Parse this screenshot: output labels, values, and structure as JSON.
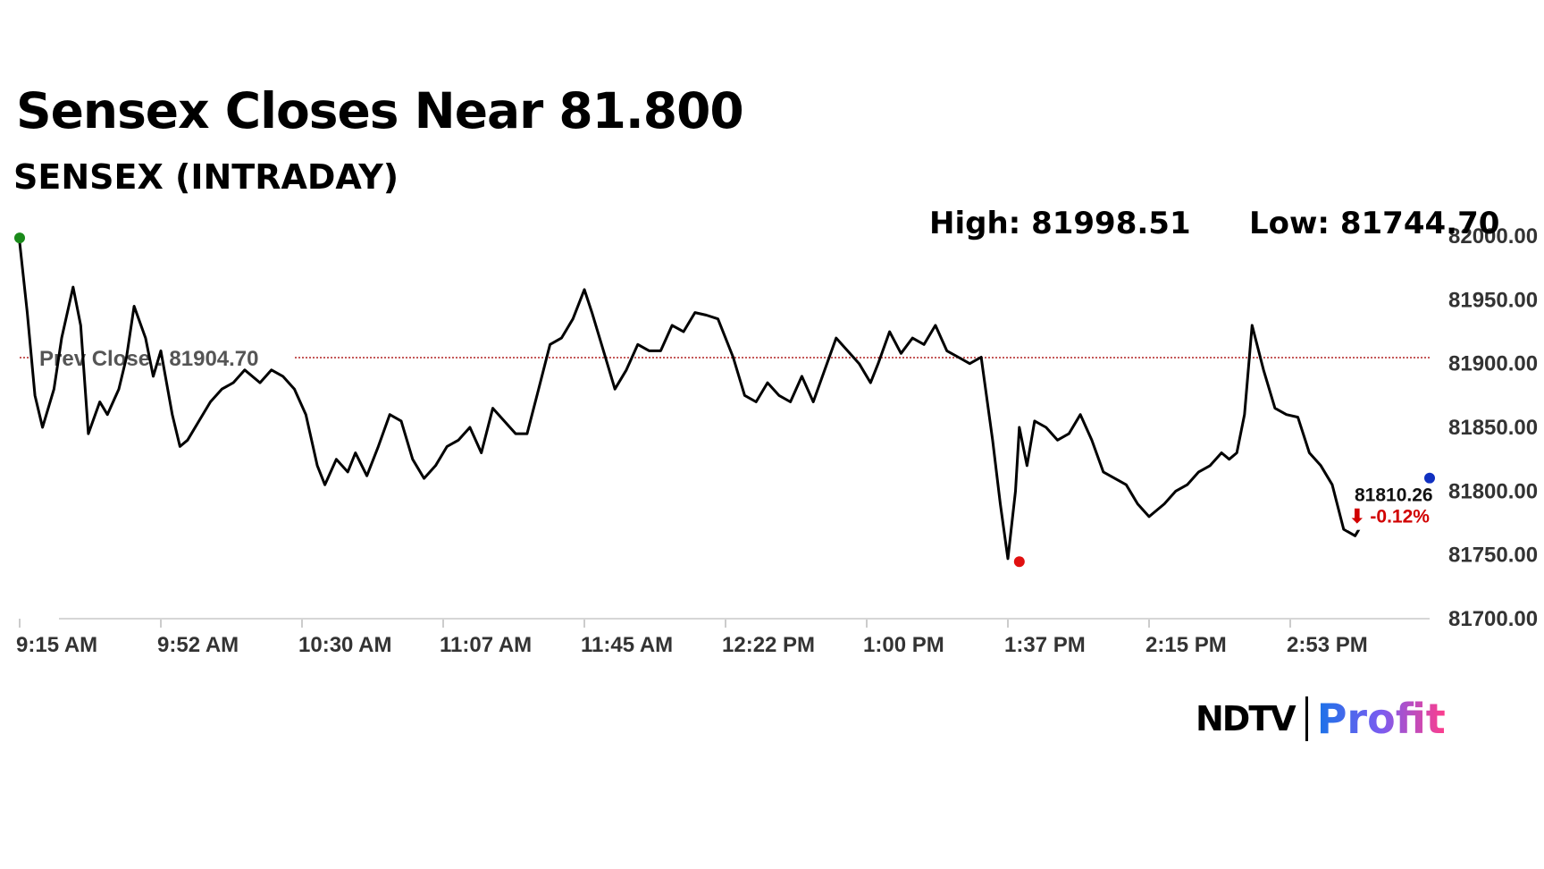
{
  "headline": "Sensex Closes Near 81.800",
  "subtitle": "SENSEX (INTRADAY)",
  "stats": {
    "high": "High: 81998.51",
    "low": "Low: 81744.70"
  },
  "logo": {
    "ndtv": "NDTV",
    "profit": "Profit"
  },
  "chart_data": {
    "type": "line",
    "title": "",
    "xlabel": "",
    "ylabel": "",
    "ylim": [
      81700,
      82000
    ],
    "yticks": [
      "82000.00",
      "81950.00",
      "81900.00",
      "81850.00",
      "81800.00",
      "81750.00",
      "81700.00"
    ],
    "xticks": [
      "9:15 AM",
      "9:52 AM",
      "10:30 AM",
      "11:07 AM",
      "11:45 AM",
      "12:22 PM",
      "1:00 PM",
      "1:37 PM",
      "2:15 PM",
      "2:53 PM"
    ],
    "prev_close": {
      "label": "Prev Close : 81904.70",
      "value": 81904.7
    },
    "last": {
      "value_label": "81810.26",
      "change_label": "⬇ -0.12%",
      "value": 81810.26
    },
    "high_point": {
      "time": "9:15 AM",
      "value": 81998.51
    },
    "low_point": {
      "time": "1:37 PM",
      "value": 81744.7
    },
    "colors": {
      "line": "#000000",
      "prev_close": "#b22222",
      "high_marker": "#1a8a1a",
      "low_marker": "#e01010",
      "last_marker": "#1030c0",
      "change": "#d10000"
    },
    "series": [
      {
        "x": [
          "9:15 AM",
          "9:17 AM",
          "9:19 AM",
          "9:21 AM",
          "9:24 AM",
          "9:26 AM",
          "9:29 AM",
          "9:31 AM",
          "9:33 AM",
          "9:36 AM",
          "9:38 AM",
          "9:41 AM",
          "9:43 AM",
          "9:45 AM",
          "9:48 AM",
          "9:50 AM",
          "9:52 AM",
          "9:55 AM",
          "9:57 AM",
          "9:59 AM",
          "10:02 AM",
          "10:05 AM",
          "10:08 AM",
          "10:11 AM",
          "10:14 AM",
          "10:18 AM",
          "10:21 AM",
          "10:24 AM",
          "10:27 AM",
          "10:30 AM",
          "10:33 AM",
          "10:35 AM",
          "10:38 AM",
          "10:41 AM",
          "10:43 AM",
          "10:46 AM",
          "10:49 AM",
          "10:52 AM",
          "10:55 AM",
          "10:58 AM",
          "11:01 AM",
          "11:04 AM",
          "11:07 AM",
          "11:10 AM",
          "11:13 AM",
          "11:16 AM",
          "11:19 AM",
          "11:22 AM",
          "11:25 AM",
          "11:28 AM",
          "11:31 AM",
          "11:34 AM",
          "11:37 AM",
          "11:40 AM",
          "11:43 AM",
          "11:45 AM",
          "11:48 AM",
          "11:51 AM",
          "11:54 AM",
          "11:57 AM",
          "12:00 PM",
          "12:03 PM",
          "12:06 PM",
          "12:09 PM",
          "12:12 PM",
          "12:15 PM",
          "12:18 PM",
          "12:22 PM",
          "12:25 PM",
          "12:28 PM",
          "12:31 PM",
          "12:34 PM",
          "12:37 PM",
          "12:40 PM",
          "12:43 PM",
          "12:46 PM",
          "12:49 PM",
          "12:52 PM",
          "12:55 PM",
          "12:58 PM",
          "1:00 PM",
          "1:03 PM",
          "1:06 PM",
          "1:09 PM",
          "1:12 PM",
          "1:15 PM",
          "1:18 PM",
          "1:21 PM",
          "1:24 PM",
          "1:27 PM",
          "1:30 PM",
          "1:32 PM",
          "1:34 PM",
          "1:36 PM",
          "1:37 PM",
          "1:39 PM",
          "1:41 PM",
          "1:44 PM",
          "1:47 PM",
          "1:50 PM",
          "1:53 PM",
          "1:56 PM",
          "1:59 PM",
          "2:02 PM",
          "2:05 PM",
          "2:08 PM",
          "2:11 PM",
          "2:15 PM",
          "2:18 PM",
          "2:21 PM",
          "2:24 PM",
          "2:27 PM",
          "2:30 PM",
          "2:32 PM",
          "2:34 PM",
          "2:36 PM",
          "2:38 PM",
          "2:41 PM",
          "2:44 PM",
          "2:47 PM",
          "2:50 PM",
          "2:53 PM",
          "2:56 PM",
          "2:59 PM",
          "3:02 PM",
          "3:05 PM",
          "3:08 PM",
          "3:11 PM"
        ],
        "values": [
          81995,
          81940,
          81875,
          81850,
          81880,
          81920,
          81960,
          81930,
          81845,
          81870,
          81860,
          81880,
          81905,
          81945,
          81920,
          81890,
          81910,
          81860,
          81835,
          81840,
          81855,
          81870,
          81880,
          81885,
          81895,
          81885,
          81895,
          81890,
          81880,
          81860,
          81820,
          81805,
          81825,
          81815,
          81830,
          81812,
          81835,
          81860,
          81855,
          81825,
          81810,
          81820,
          81835,
          81840,
          81850,
          81830,
          81865,
          81855,
          81845,
          81845,
          81880,
          81915,
          81920,
          81935,
          81958,
          81940,
          81910,
          81880,
          81895,
          81915,
          81910,
          81910,
          81930,
          81925,
          81940,
          81938,
          81935,
          81905,
          81875,
          81870,
          81885,
          81875,
          81870,
          81890,
          81870,
          81895,
          81920,
          81910,
          81900,
          81885,
          81900,
          81925,
          81908,
          81920,
          81915,
          81930,
          81910,
          81905,
          81900,
          81905,
          81840,
          81790,
          81747,
          81800,
          81850,
          81820,
          81855,
          81850,
          81840,
          81845,
          81860,
          81840,
          81815,
          81810,
          81805,
          81790,
          81780,
          81790,
          81800,
          81805,
          81815,
          81820,
          81830,
          81825,
          81830,
          81860,
          81930,
          81895,
          81865,
          81860,
          81858,
          81830,
          81820,
          81805,
          81770,
          81765,
          81780,
          81790
        ]
      }
    ]
  }
}
